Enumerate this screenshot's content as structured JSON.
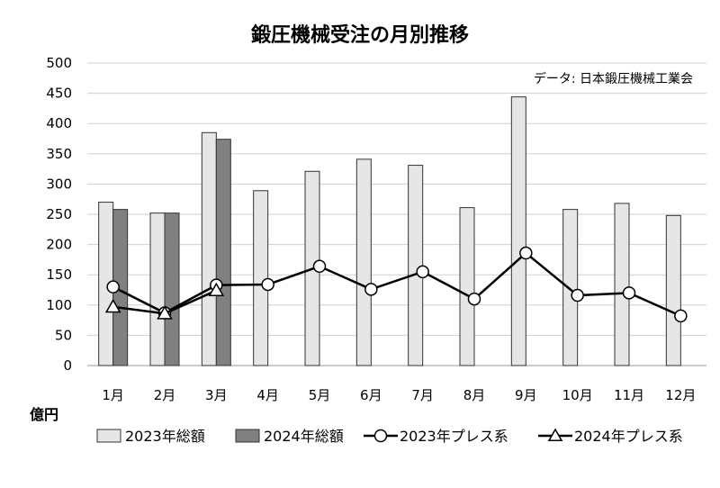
{
  "chart_data": {
    "type": "bar",
    "title": "鍛圧機械受注の月別推移",
    "source_note": "データ: 日本鍛圧機械工業会",
    "ylabel": "億円",
    "xlabel": "",
    "ylim": [
      0,
      500
    ],
    "yticks": [
      0,
      50,
      100,
      150,
      200,
      250,
      300,
      350,
      400,
      450,
      500
    ],
    "grid": true,
    "legend_position": "bottom",
    "categories": [
      "1月",
      "2月",
      "3月",
      "4月",
      "5月",
      "6月",
      "7月",
      "8月",
      "9月",
      "10月",
      "11月",
      "12月"
    ],
    "series": [
      {
        "name": "2023年総額",
        "kind": "bar",
        "color": "#e6e6e6",
        "values": [
          270,
          252,
          385,
          289,
          321,
          341,
          331,
          261,
          444,
          258,
          268,
          248
        ]
      },
      {
        "name": "2024年総額",
        "kind": "bar",
        "color": "#808080",
        "values": [
          258,
          252,
          374,
          null,
          null,
          null,
          null,
          null,
          null,
          null,
          null,
          null
        ]
      },
      {
        "name": "2023年プレス系",
        "kind": "line",
        "marker": "circle",
        "color": "#000000",
        "values": [
          130,
          87,
          133,
          134,
          164,
          126,
          155,
          110,
          186,
          116,
          120,
          82
        ]
      },
      {
        "name": "2024年プレス系",
        "kind": "line",
        "marker": "triangle",
        "color": "#000000",
        "values": [
          97,
          86,
          124,
          null,
          null,
          null,
          null,
          null,
          null,
          null,
          null,
          null
        ]
      }
    ]
  }
}
